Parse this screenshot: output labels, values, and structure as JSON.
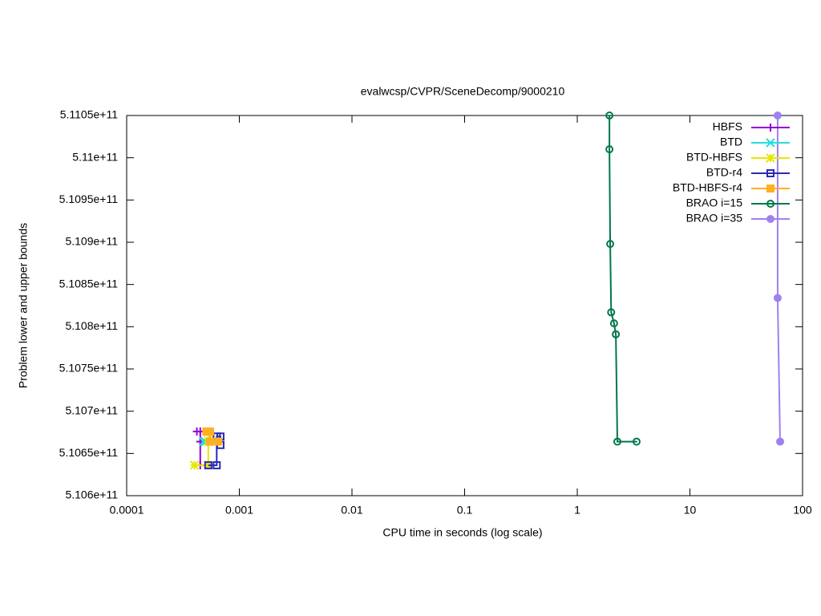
{
  "chart_data": {
    "type": "line",
    "title": "evalwcsp/CVPR/SceneDecomp/9000210",
    "x_label": "CPU time in seconds (log scale)",
    "y_label": "Problem lower and upper bounds",
    "xlog": true,
    "xlim": [
      0.0001,
      100
    ],
    "xticks": [
      0.0001,
      0.001,
      0.01,
      0.1,
      1,
      10,
      100
    ],
    "ylim": [
      510600000000,
      511050000000
    ],
    "yticks": [
      {
        "value": 510600000000,
        "label": "5.106e+11"
      },
      {
        "value": 510650000000,
        "label": "5.1065e+11"
      },
      {
        "value": 510700000000,
        "label": "5.107e+11"
      },
      {
        "value": 510750000000,
        "label": "5.1075e+11"
      },
      {
        "value": 510800000000,
        "label": "5.108e+11"
      },
      {
        "value": 510850000000,
        "label": "5.1085e+11"
      },
      {
        "value": 510900000000,
        "label": "5.109e+11"
      },
      {
        "value": 510950000000,
        "label": "5.1095e+11"
      },
      {
        "value": 511000000000,
        "label": "5.11e+11"
      },
      {
        "value": 511050000000,
        "label": "5.1105e+11"
      }
    ],
    "legend": "top-right",
    "series": [
      {
        "name": "HBFS",
        "color": "#9400d3",
        "marker": "plus",
        "x": [
          0.00042,
          0.00045,
          0.00045,
          0.00045
        ],
        "values": [
          510676000000,
          510676000000,
          510664000000,
          510636000000
        ]
      },
      {
        "name": "BTD",
        "color": "#22dddd",
        "marker": "cross",
        "x": [
          0.00048,
          0.0005
        ],
        "values": [
          510664000000,
          510664000000
        ]
      },
      {
        "name": "BTD-HBFS",
        "color": "#e6e600",
        "marker": "star",
        "x": [
          0.0004,
          0.00053,
          0.00053,
          0.00053
        ],
        "values": [
          510636000000,
          510636000000,
          510664000000,
          510675000000
        ]
      },
      {
        "name": "BTD-r4",
        "color": "#2a2ab8",
        "marker": "square",
        "x": [
          0.00053,
          0.00063,
          0.00063,
          0.00068,
          0.00068
        ],
        "values": [
          510636000000,
          510636000000,
          510670000000,
          510670000000,
          510660000000
        ]
      },
      {
        "name": "BTD-HBFS-r4",
        "color": "#ffb020",
        "marker": "filled-square",
        "x": [
          0.00051,
          0.00055,
          0.00055,
          0.00065
        ],
        "values": [
          510676000000,
          510676000000,
          510664000000,
          510664000000
        ]
      },
      {
        "name": "BRAO i=15",
        "color": "#00784a",
        "marker": "circle",
        "x": [
          1.93,
          1.93,
          1.96,
          2.0,
          2.12,
          2.2,
          2.27,
          3.36
        ],
        "values": [
          511050000000,
          511010000000,
          510898000000,
          510817000000,
          510804000000,
          510791000000,
          510664000000,
          510664000000
        ]
      },
      {
        "name": "BRAO i=35",
        "color": "#a080f0",
        "marker": "filled-circle",
        "x": [
          60.1,
          60.1,
          63.2
        ],
        "values": [
          511050000000,
          510834000000,
          510664000000
        ]
      }
    ]
  }
}
